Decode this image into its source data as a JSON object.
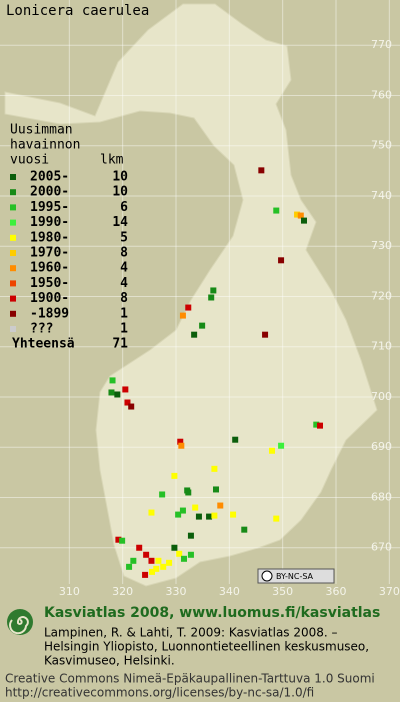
{
  "title": "Lonicera caerulea",
  "legend": {
    "heading": [
      "Uusimman",
      "havainnon",
      "vuosi"
    ],
    "count_heading": "lkm",
    "entries": [
      {
        "label": "2005-",
        "count": 10,
        "color": "#0b5e0b"
      },
      {
        "label": "2000-",
        "count": 10,
        "color": "#178a17"
      },
      {
        "label": "1995-",
        "count": 6,
        "color": "#26c026"
      },
      {
        "label": "1990-",
        "count": 14,
        "color": "#3cf03c"
      },
      {
        "label": "1980-",
        "count": 5,
        "color": "#ffff00"
      },
      {
        "label": "1970-",
        "count": 8,
        "color": "#ffcc00"
      },
      {
        "label": "1960-",
        "count": 4,
        "color": "#ff8c00"
      },
      {
        "label": "1950-",
        "count": 4,
        "color": "#ee4400"
      },
      {
        "label": "1900-",
        "count": 8,
        "color": "#cc0000"
      },
      {
        "label": "-1899",
        "count": 1,
        "color": "#880000"
      },
      {
        "label": "???",
        "count": 1,
        "color": "#cccccc"
      }
    ],
    "total_label": "Yhteensä",
    "total": 71
  },
  "xticks": [
    310,
    320,
    330,
    340,
    350,
    360,
    370
  ],
  "yticks": [
    670,
    680,
    690,
    700,
    710,
    720,
    730,
    740,
    750,
    760,
    770
  ],
  "xlim": [
    297,
    372
  ],
  "ylim": [
    660,
    779
  ],
  "observations": [
    [
      346,
      745.1,
      9
    ],
    [
      348.8,
      737.1,
      2
    ],
    [
      352.7,
      736.3,
      5
    ],
    [
      353.4,
      736.1,
      6
    ],
    [
      354,
      735.1,
      0
    ],
    [
      349.7,
      727.2,
      9
    ],
    [
      337,
      721.2,
      1
    ],
    [
      336.6,
      719.8,
      1
    ],
    [
      332.3,
      717.8,
      8
    ],
    [
      331.3,
      716.2,
      6
    ],
    [
      334.9,
      714.2,
      1
    ],
    [
      333.4,
      712.4,
      0
    ],
    [
      346.7,
      712.4,
      9
    ],
    [
      318.1,
      703.3,
      2
    ],
    [
      317.9,
      700.9,
      1
    ],
    [
      319,
      700.5,
      0
    ],
    [
      320.5,
      701.5,
      8
    ],
    [
      320.9,
      698.9,
      8
    ],
    [
      321.6,
      698.1,
      9
    ],
    [
      341.1,
      691.5,
      0
    ],
    [
      349.7,
      690.3,
      3
    ],
    [
      330.8,
      691.1,
      8
    ],
    [
      331,
      690.3,
      6
    ],
    [
      348,
      689.3,
      4
    ],
    [
      356.3,
      694.5,
      2
    ],
    [
      357,
      694.3,
      8
    ],
    [
      329.7,
      684.3,
      4
    ],
    [
      337.2,
      685.7,
      4
    ],
    [
      332.1,
      681.4,
      1
    ],
    [
      332.3,
      681,
      1
    ],
    [
      327.4,
      680.6,
      2
    ],
    [
      337.5,
      681.6,
      1
    ],
    [
      333.6,
      678,
      4
    ],
    [
      330.4,
      676.6,
      2
    ],
    [
      331.3,
      677.4,
      2
    ],
    [
      325.4,
      677,
      4
    ],
    [
      334.3,
      676.2,
      0
    ],
    [
      336.2,
      676.2,
      0
    ],
    [
      337.2,
      676.4,
      4
    ],
    [
      338.3,
      678.4,
      6
    ],
    [
      340.7,
      676.6,
      4
    ],
    [
      332.8,
      672.4,
      0
    ],
    [
      342.8,
      673.6,
      1
    ],
    [
      348.8,
      675.8,
      4
    ],
    [
      319.2,
      671.6,
      8
    ],
    [
      319.9,
      671.4,
      2
    ],
    [
      323.1,
      670,
      8
    ],
    [
      324.4,
      668.6,
      8
    ],
    [
      325.4,
      667.4,
      8
    ],
    [
      326.7,
      667.4,
      4
    ],
    [
      327.6,
      666.2,
      4
    ],
    [
      328.7,
      667,
      4
    ],
    [
      330.6,
      668.8,
      4
    ],
    [
      331.5,
      667.8,
      2
    ],
    [
      332.8,
      668.6,
      2
    ],
    [
      329.7,
      670,
      0
    ],
    [
      326.3,
      665.8,
      4
    ],
    [
      324.2,
      664.6,
      8
    ],
    [
      325.5,
      665.2,
      4
    ],
    [
      321.2,
      666.2,
      2
    ],
    [
      322,
      667.4,
      2
    ]
  ],
  "license_badge": "BY-NC-SA",
  "footer": {
    "site": "Kasviatlas 2008, www.luomus.fi/kasviatlas",
    "citation": [
      "Lampinen, R. & Lahti, T. 2009: Kasviatlas 2008. –",
      "Helsingin Yliopisto, Luonnontieteellinen keskusmuseo,",
      "Kasvimuseo, Helsinki."
    ],
    "license": [
      "Creative Commons Nimeä-Epäkaupallinen-Tarttuva 1.0 Suomi",
      "http://creativecommons.org/licenses/by-nc-sa/1.0/fi"
    ]
  }
}
